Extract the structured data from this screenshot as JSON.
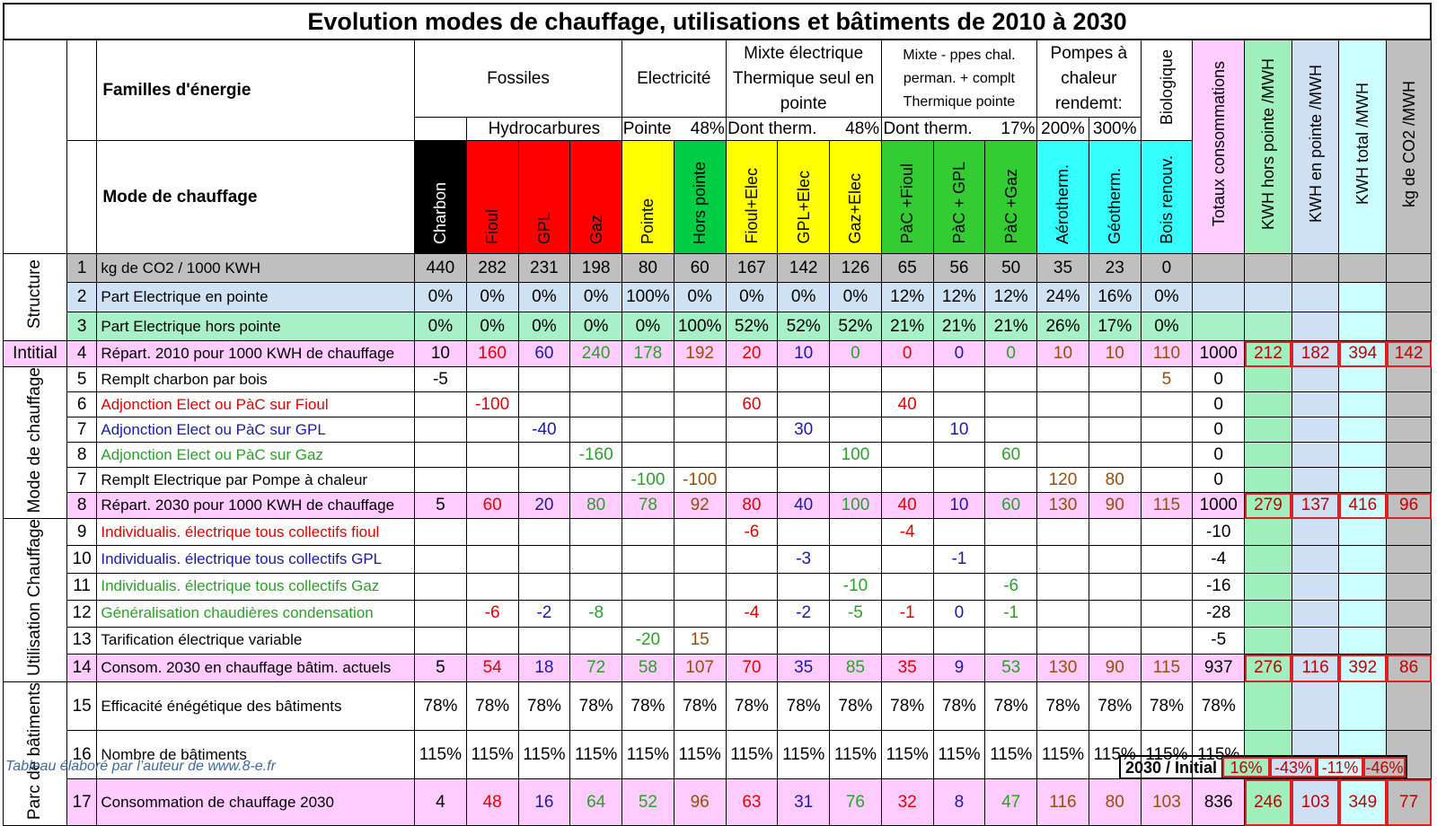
{
  "title": "Evolution modes de chauffage, utilisations et bâtiments de 2010 à 2030",
  "header": {
    "familles_label": "Familles d'énergie",
    "mode_label": "Mode de chauffage",
    "groups": {
      "fossiles": "Fossiles",
      "electricite": "Electricité",
      "mixte": "Mixte électrique Thermique seul en pointe",
      "mixte_pac": "Mixte - ppes chal. perman. + complt Thermique pointe",
      "pompes": "Pompes à chaleur rendemt:",
      "biologique": "Biologique"
    },
    "subgroups": {
      "hydrocarbures": "Hydrocarbures",
      "pointe": "Pointe",
      "pointe_pct": "48%",
      "dont_therm_1": "Dont therm.",
      "dont_therm_1_pct": "48%",
      "dont_therm_2": "Dont therm.",
      "dont_therm_2_pct": "17%",
      "rendement_200": "200%",
      "rendement_300": "300%"
    },
    "modes": [
      "Charbon",
      "Fioul",
      "GPL",
      "Gaz",
      "Pointe",
      "Hors pointe",
      "Fioul+Elec",
      "GPL+Elec",
      "Gaz+Elec",
      "PàC +Fioul",
      "PàC + GPL",
      "PàC +Gaz",
      "Aérotherm.",
      "Géotherm.",
      "Bois renouv."
    ],
    "totaux": "Totaux consommations",
    "kwh_hors": "KWH hors pointe /MWH",
    "kwh_pointe": "KWH en pointe /MWH",
    "kwh_total": "KWH total /MWH",
    "co2": "kg de CO2 /MWH"
  },
  "sections": {
    "structure": "Structure",
    "initial": "Intitial",
    "mode": "Mode de chauffage",
    "utilisation": "Utilisation Chauffage",
    "parc": "Parc de bâtiments"
  },
  "rows": [
    {
      "num": "1",
      "label": "kg de CO2 / 1000 KWH",
      "vals": [
        "440",
        "282",
        "231",
        "198",
        "80",
        "60",
        "167",
        "142",
        "126",
        "65",
        "56",
        "50",
        "35",
        "23",
        "0"
      ],
      "tot": "",
      "k": [
        "",
        "",
        "",
        ""
      ]
    },
    {
      "num": "2",
      "label": "Part Electrique en pointe",
      "vals": [
        "0%",
        "0%",
        "0%",
        "0%",
        "100%",
        "0%",
        "0%",
        "0%",
        "0%",
        "12%",
        "12%",
        "12%",
        "24%",
        "16%",
        "0%"
      ],
      "tot": "",
      "k": [
        "",
        "",
        "",
        ""
      ]
    },
    {
      "num": "3",
      "label": "Part Electrique hors pointe",
      "vals": [
        "0%",
        "0%",
        "0%",
        "0%",
        "0%",
        "100%",
        "52%",
        "52%",
        "52%",
        "21%",
        "21%",
        "21%",
        "26%",
        "17%",
        "0%"
      ],
      "tot": "",
      "k": [
        "",
        "",
        "",
        ""
      ]
    },
    {
      "num": "4",
      "label": "Répart. 2010 pour 1000 KWH de chauffage",
      "vals": [
        "10",
        "160",
        "60",
        "240",
        "178",
        "192",
        "20",
        "10",
        "0",
        "0",
        "0",
        "0",
        "10",
        "10",
        "110"
      ],
      "tot": "1000",
      "k": [
        "212",
        "182",
        "394",
        "142"
      ]
    },
    {
      "num": "5",
      "label": "Remplt charbon par bois",
      "vals": [
        "-5",
        "",
        "",
        "",
        "",
        "",
        "",
        "",
        "",
        "",
        "",
        "",
        "",
        "",
        "5"
      ],
      "tot": "0",
      "k": [
        "",
        "",
        "",
        ""
      ]
    },
    {
      "num": "6",
      "label": "Adjonction Elect ou PàC sur Fioul",
      "vals": [
        "",
        "-100",
        "",
        "",
        "",
        "",
        "60",
        "",
        "",
        "40",
        "",
        "",
        "",
        "",
        ""
      ],
      "tot": "0",
      "k": [
        "",
        "",
        "",
        ""
      ]
    },
    {
      "num": "7",
      "label": "Adjonction Elect ou PàC sur GPL",
      "vals": [
        "",
        "",
        "-40",
        "",
        "",
        "",
        "",
        "30",
        "",
        "",
        "10",
        "",
        "",
        "",
        ""
      ],
      "tot": "0",
      "k": [
        "",
        "",
        "",
        ""
      ]
    },
    {
      "num": "8",
      "label": "Adjonction Elect ou PàC sur Gaz",
      "vals": [
        "",
        "",
        "",
        "-160",
        "",
        "",
        "",
        "",
        "100",
        "",
        "",
        "60",
        "",
        "",
        ""
      ],
      "tot": "0",
      "k": [
        "",
        "",
        "",
        ""
      ]
    },
    {
      "num": "7",
      "label": "Remplt Electrique par Pompe à chaleur",
      "vals": [
        "",
        "",
        "",
        "",
        "-100",
        "-100",
        "",
        "",
        "",
        "",
        "",
        "",
        "120",
        "80",
        ""
      ],
      "tot": "0",
      "k": [
        "",
        "",
        "",
        ""
      ]
    },
    {
      "num": "8",
      "label": "Répart. 2030 pour 1000 KWH de chauffage",
      "vals": [
        "5",
        "60",
        "20",
        "80",
        "78",
        "92",
        "80",
        "40",
        "100",
        "40",
        "10",
        "60",
        "130",
        "90",
        "115"
      ],
      "tot": "1000",
      "k": [
        "279",
        "137",
        "416",
        "96"
      ]
    },
    {
      "num": "9",
      "label": "Individualis. électrique tous collectifs fioul",
      "vals": [
        "",
        "",
        "",
        "",
        "",
        "",
        "-6",
        "",
        "",
        "-4",
        "",
        "",
        "",
        "",
        ""
      ],
      "tot": "-10",
      "k": [
        "",
        "",
        "",
        ""
      ]
    },
    {
      "num": "10",
      "label": "Individualis. électrique tous collectifs GPL",
      "vals": [
        "",
        "",
        "",
        "",
        "",
        "",
        "",
        "-3",
        "",
        "",
        "-1",
        "",
        "",
        "",
        ""
      ],
      "tot": "-4",
      "k": [
        "",
        "",
        "",
        ""
      ]
    },
    {
      "num": "11",
      "label": "Individualis. électrique tous collectifs Gaz",
      "vals": [
        "",
        "",
        "",
        "",
        "",
        "",
        "",
        "",
        "-10",
        "",
        "",
        "-6",
        "",
        "",
        ""
      ],
      "tot": "-16",
      "k": [
        "",
        "",
        "",
        ""
      ]
    },
    {
      "num": "12",
      "label": "Généralisation chaudières condensation",
      "vals": [
        "",
        "-6",
        "-2",
        "-8",
        "",
        "",
        "-4",
        "-2",
        "-5",
        "-1",
        "0",
        "-1",
        "",
        "",
        ""
      ],
      "tot": "-28",
      "k": [
        "",
        "",
        "",
        ""
      ]
    },
    {
      "num": "13",
      "label": "Tarification électrique variable",
      "vals": [
        "",
        "",
        "",
        "",
        "-20",
        "15",
        "",
        "",
        "",
        "",
        "",
        "",
        "",
        "",
        ""
      ],
      "tot": "-5",
      "k": [
        "",
        "",
        "",
        ""
      ]
    },
    {
      "num": "14",
      "label": "Consom. 2030 en chauffage bâtim. actuels",
      "vals": [
        "5",
        "54",
        "18",
        "72",
        "58",
        "107",
        "70",
        "35",
        "85",
        "35",
        "9",
        "53",
        "130",
        "90",
        "115"
      ],
      "tot": "937",
      "k": [
        "276",
        "116",
        "392",
        "86"
      ]
    },
    {
      "num": "15",
      "label": "Efficacité énégétique des bâtiments",
      "vals": [
        "78%",
        "78%",
        "78%",
        "78%",
        "78%",
        "78%",
        "78%",
        "78%",
        "78%",
        "78%",
        "78%",
        "78%",
        "78%",
        "78%",
        "78%"
      ],
      "tot": "78%",
      "k": [
        "",
        "",
        "",
        ""
      ]
    },
    {
      "num": "16",
      "label": "Nombre de bâtiments",
      "vals": [
        "115%",
        "115%",
        "115%",
        "115%",
        "115%",
        "115%",
        "115%",
        "115%",
        "115%",
        "115%",
        "115%",
        "115%",
        "115%",
        "115%",
        "115%"
      ],
      "tot": "115%",
      "k": [
        "",
        "",
        "",
        ""
      ]
    },
    {
      "num": "17",
      "label": "Consommation de chauffage 2030",
      "vals": [
        "4",
        "48",
        "16",
        "64",
        "52",
        "96",
        "63",
        "31",
        "76",
        "32",
        "8",
        "47",
        "116",
        "80",
        "103"
      ],
      "tot": "836",
      "k": [
        "246",
        "103",
        "349",
        "77"
      ]
    }
  ],
  "footer": {
    "note": "Tableau élaboré par l’auteur de www.8-e.fr",
    "ratio_label": "2030 / Initial",
    "ratios": [
      "16%",
      "-43%",
      "-11%",
      "-46%"
    ]
  },
  "colors": {
    "charbon": "#000000",
    "fossile_red": "#ff0000",
    "pointe_yellow": "#ffff00",
    "green": "#00cc44",
    "pac_green": "#33cc33",
    "cyan": "#33ffff",
    "pink": "#ffccff",
    "grey": "#bfbfbf",
    "lightblue": "#cfe2f3",
    "mint": "#a8f0c8",
    "kwh_green": "#9ff0bc",
    "kwh_blue": "#cfe0f5",
    "kwh_cyan": "#ccffff",
    "kwh_grey": "#bfbfbf"
  }
}
